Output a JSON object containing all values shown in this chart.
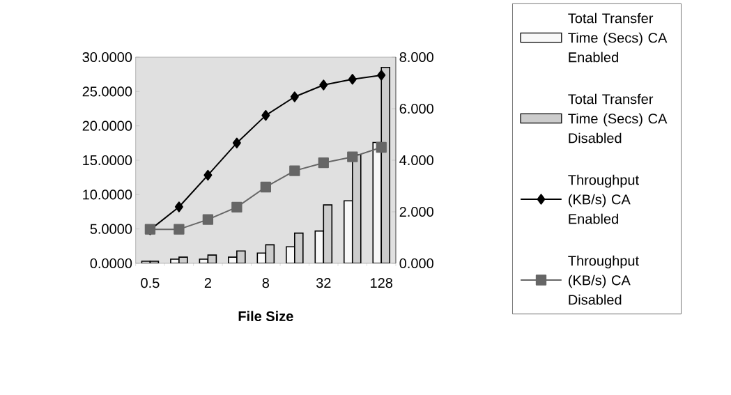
{
  "chart_data": {
    "type": "bar",
    "xlabel": "File Size",
    "categories": [
      "0.5",
      null,
      "2",
      null,
      "8",
      null,
      "32",
      null,
      "128"
    ],
    "series": [
      {
        "name": "Total Transfer Time (Secs) CA Enabled",
        "type": "bar",
        "color": "#f8f8f8",
        "values": [
          0.3,
          0.6,
          0.6,
          0.9,
          1.5,
          2.4,
          4.7,
          9.1,
          17.6
        ]
      },
      {
        "name": "Total Transfer Time (Secs) CA Disabled",
        "type": "bar",
        "color": "#cccccc",
        "values": [
          0.3,
          0.9,
          1.2,
          1.8,
          2.7,
          4.4,
          8.5,
          15.8,
          28.5
        ]
      },
      {
        "name": "Throughput (KB/s) CA Enabled",
        "type": "line",
        "axis": "y2",
        "color": "#000000",
        "marker": "diamond",
        "line_style": "solid",
        "values": [
          1.3,
          2.19,
          3.42,
          4.67,
          5.74,
          6.46,
          6.92,
          7.14,
          7.3
        ]
      },
      {
        "name": "Throughput (KB/s) CA Disabled",
        "type": "line",
        "axis": "y2",
        "color": "#666666",
        "marker": "square",
        "line_style": "solid",
        "values": [
          1.32,
          1.32,
          1.7,
          2.18,
          2.96,
          3.59,
          3.9,
          4.13,
          4.5
        ]
      }
    ],
    "ylim": [
      0,
      30
    ],
    "yticks": [
      {
        "value": 0,
        "label": "0.0000"
      },
      {
        "value": 5,
        "label": "5.0000"
      },
      {
        "value": 10,
        "label": "10.0000"
      },
      {
        "value": 15,
        "label": "15.0000"
      },
      {
        "value": 20,
        "label": "20.0000"
      },
      {
        "value": 25,
        "label": "25.0000"
      },
      {
        "value": 30,
        "label": "30.0000"
      }
    ],
    "y2lim": [
      0,
      8
    ],
    "y2ticks": [
      {
        "value": 0,
        "label": "0.000"
      },
      {
        "value": 2,
        "label": "2.000"
      },
      {
        "value": 4,
        "label": "4.000"
      },
      {
        "value": 6,
        "label": "6.000"
      },
      {
        "value": 8,
        "label": "8.000"
      }
    ],
    "legend": "right",
    "grid": false
  }
}
